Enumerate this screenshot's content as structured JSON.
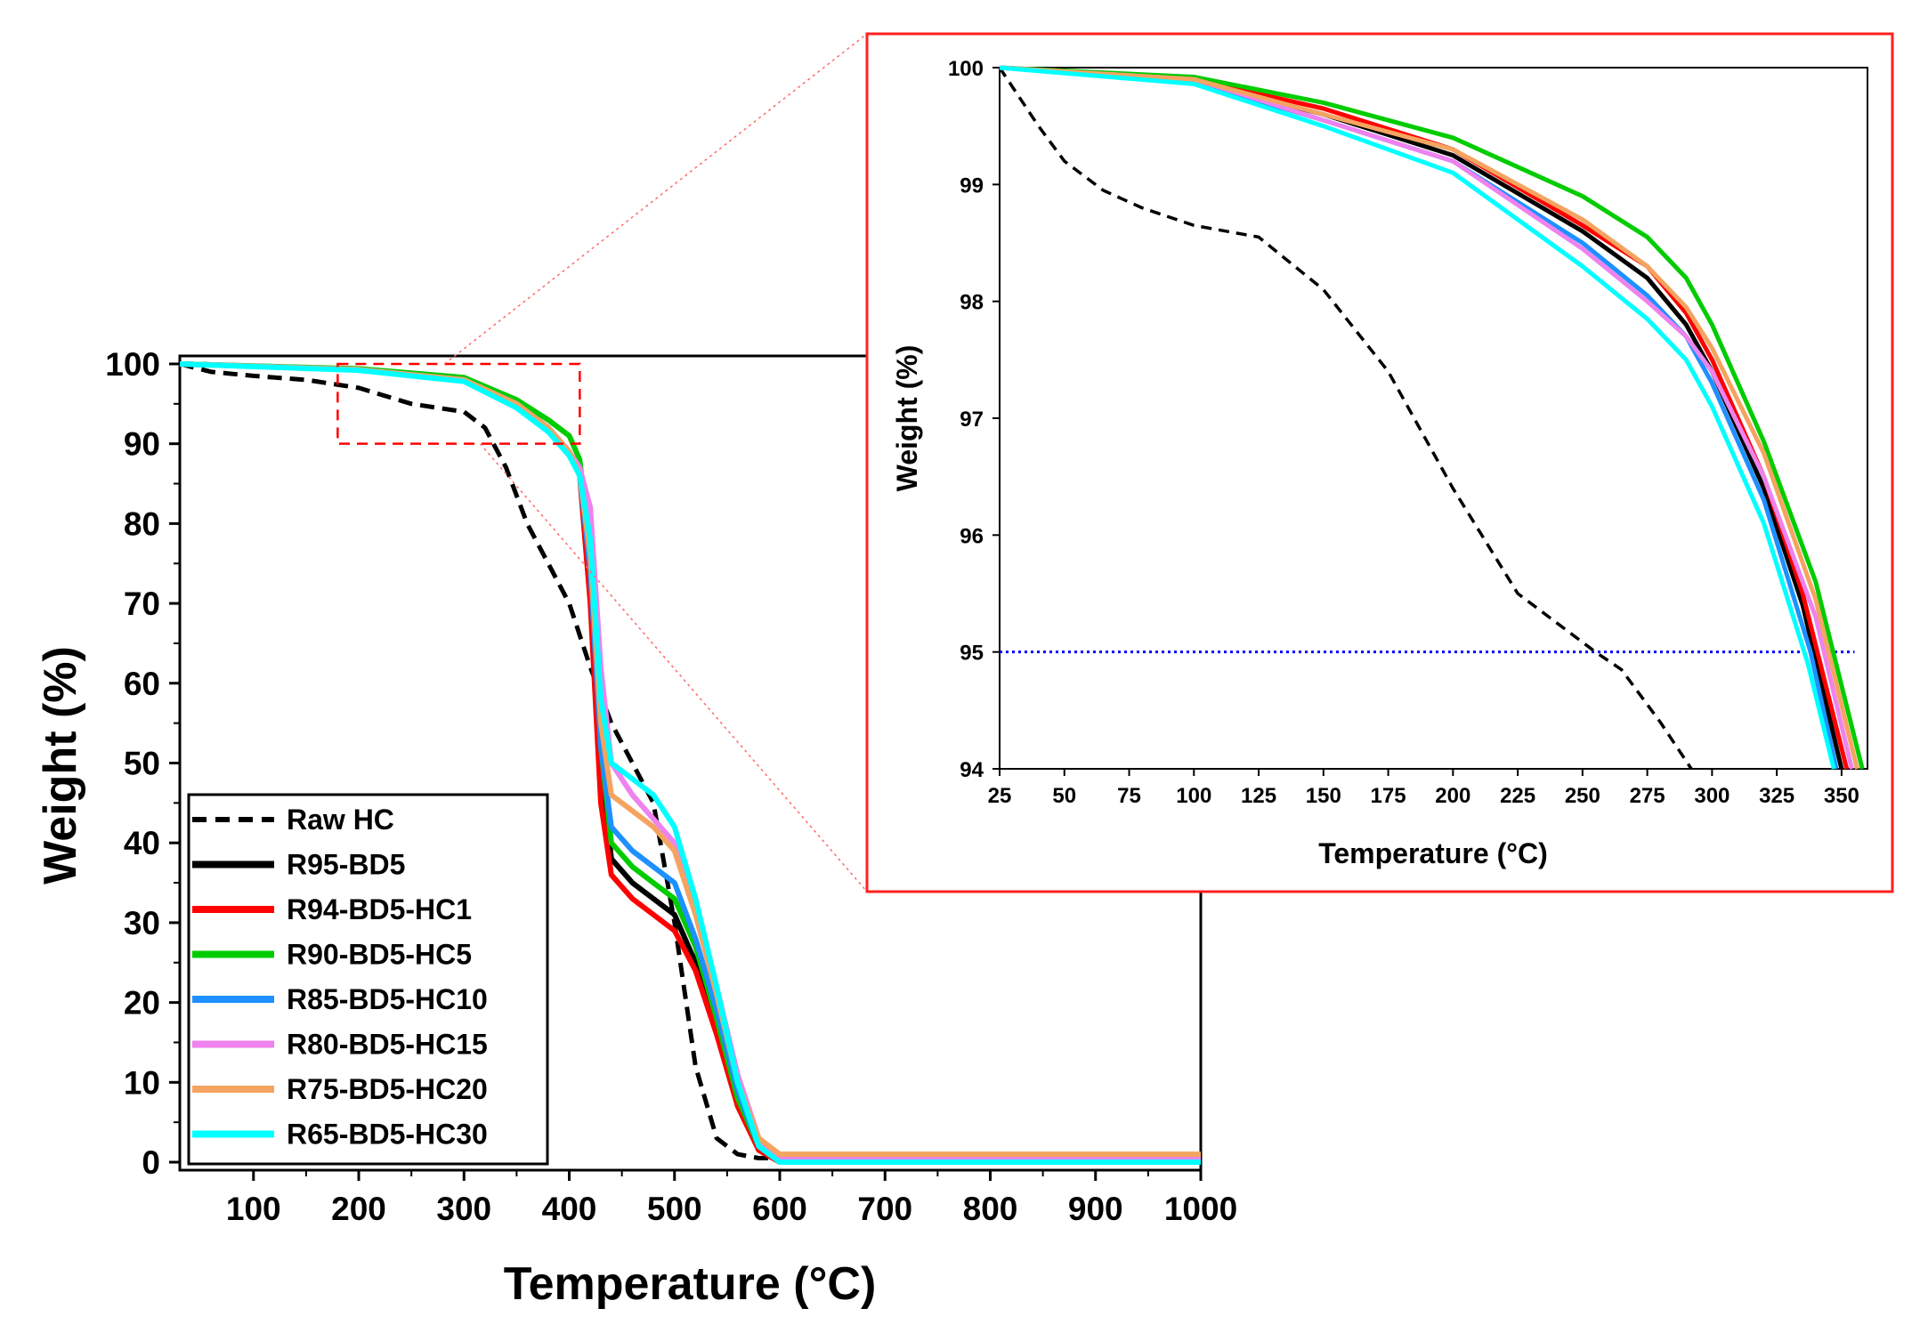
{
  "chart_data": [
    {
      "id": "main",
      "type": "line",
      "title": "",
      "xlabel": "Temperature (°C)",
      "ylabel": "Weight (%)",
      "xlim": [
        30,
        1000
      ],
      "ylim": [
        -1,
        101
      ],
      "xticks": [
        100,
        200,
        300,
        400,
        500,
        600,
        700,
        800,
        900,
        1000
      ],
      "yticks": [
        0,
        10,
        20,
        30,
        40,
        50,
        60,
        70,
        80,
        90,
        100
      ],
      "zoom_box": {
        "x": [
          180,
          410
        ],
        "y": [
          90,
          100
        ]
      },
      "legend_position": "bottom-left",
      "series": [
        {
          "name": "Raw HC",
          "color": "#000000",
          "dash": true,
          "x": [
            30,
            60,
            100,
            150,
            200,
            250,
            300,
            320,
            340,
            360,
            380,
            400,
            420,
            440,
            460,
            480,
            500,
            520,
            540,
            560,
            580,
            1000
          ],
          "y": [
            100,
            99,
            98.5,
            98,
            97,
            95,
            94,
            92,
            87,
            80,
            75,
            70,
            62,
            55,
            50,
            45,
            30,
            12,
            3,
            1,
            0.5,
            0.5
          ]
        },
        {
          "name": "R95-BD5",
          "color": "#000000",
          "dash": false,
          "x": [
            30,
            200,
            300,
            350,
            380,
            400,
            410,
            420,
            430,
            440,
            460,
            480,
            500,
            520,
            540,
            560,
            580,
            600,
            1000
          ],
          "y": [
            100,
            99.3,
            98,
            95,
            92,
            89,
            86,
            75,
            50,
            38,
            35,
            33,
            31,
            25,
            17,
            8,
            2,
            0,
            0
          ]
        },
        {
          "name": "R94-BD5-HC1",
          "color": "#ff0000",
          "dash": false,
          "x": [
            30,
            200,
            300,
            350,
            380,
            400,
            410,
            420,
            430,
            440,
            460,
            480,
            500,
            520,
            540,
            560,
            580,
            600,
            1000
          ],
          "y": [
            100,
            99.3,
            98,
            95,
            92,
            89,
            86,
            70,
            45,
            36,
            33,
            31,
            29,
            24,
            16,
            7,
            1.5,
            0,
            0
          ]
        },
        {
          "name": "R90-BD5-HC5",
          "color": "#00cc00",
          "dash": false,
          "x": [
            30,
            200,
            300,
            350,
            380,
            400,
            410,
            420,
            430,
            440,
            460,
            480,
            500,
            520,
            540,
            560,
            580,
            600,
            1000
          ],
          "y": [
            100,
            99.4,
            98.3,
            95.5,
            93,
            91,
            88,
            76,
            52,
            40,
            37,
            35,
            33,
            27,
            18,
            8,
            2,
            0,
            0
          ]
        },
        {
          "name": "R85-BD5-HC10",
          "color": "#1e90ff",
          "dash": false,
          "x": [
            30,
            200,
            300,
            350,
            380,
            400,
            410,
            420,
            430,
            440,
            460,
            480,
            500,
            520,
            540,
            560,
            580,
            600,
            1000
          ],
          "y": [
            100,
            99.3,
            98,
            95,
            92,
            89,
            86,
            74,
            52,
            42,
            39,
            37,
            35,
            28,
            19,
            9,
            2,
            0,
            0
          ]
        },
        {
          "name": "R80-BD5-HC15",
          "color": "#ee82ee",
          "dash": false,
          "x": [
            30,
            200,
            300,
            350,
            380,
            400,
            410,
            420,
            430,
            440,
            460,
            480,
            500,
            520,
            540,
            560,
            580,
            600,
            1000
          ],
          "y": [
            100,
            99.3,
            98,
            95,
            92,
            89,
            87,
            82,
            62,
            50,
            46,
            43,
            40,
            32,
            22,
            11,
            3,
            0.5,
            0.5
          ]
        },
        {
          "name": "R75-BD5-HC20",
          "color": "#f4a460",
          "dash": false,
          "x": [
            30,
            200,
            300,
            350,
            380,
            400,
            410,
            420,
            430,
            440,
            460,
            480,
            500,
            520,
            540,
            560,
            580,
            600,
            1000
          ],
          "y": [
            100,
            99.3,
            98,
            95,
            92,
            89,
            86,
            76,
            55,
            46,
            44,
            42,
            39,
            31,
            21,
            10,
            3,
            1,
            1
          ]
        },
        {
          "name": "R65-BD5-HC30",
          "color": "#00ffff",
          "dash": false,
          "x": [
            30,
            200,
            300,
            350,
            380,
            400,
            410,
            420,
            430,
            440,
            460,
            480,
            500,
            520,
            540,
            560,
            580,
            600,
            1000
          ],
          "y": [
            100,
            99.2,
            97.8,
            94.5,
            91.5,
            88.5,
            86,
            78,
            58,
            50,
            48,
            46,
            42,
            33,
            22,
            10,
            2,
            0,
            0
          ]
        }
      ]
    },
    {
      "id": "inset",
      "type": "line",
      "title": "",
      "xlabel": "Temperature (°C)",
      "ylabel": "Weight (%)",
      "xlim": [
        25,
        360
      ],
      "ylim": [
        94,
        100
      ],
      "xticks": [
        25,
        50,
        75,
        100,
        125,
        150,
        175,
        200,
        225,
        250,
        275,
        300,
        325,
        350
      ],
      "yticks": [
        94,
        95,
        96,
        97,
        98,
        99,
        100
      ],
      "reference_line": {
        "y": 95,
        "x": [
          25,
          355
        ],
        "color": "#0000ff",
        "style": "dotted"
      },
      "series": [
        {
          "name": "Raw HC",
          "color": "#000000",
          "dash": true,
          "x": [
            25,
            40,
            50,
            65,
            80,
            100,
            125,
            150,
            175,
            200,
            225,
            240,
            255,
            265,
            280,
            292
          ],
          "y": [
            100,
            99.5,
            99.2,
            98.95,
            98.8,
            98.65,
            98.55,
            98.1,
            97.4,
            96.4,
            95.5,
            95.25,
            95.0,
            94.85,
            94.4,
            94.0
          ]
        },
        {
          "name": "R95-BD5",
          "color": "#000000",
          "dash": false,
          "x": [
            25,
            100,
            150,
            200,
            250,
            275,
            290,
            300,
            320,
            335,
            350
          ],
          "y": [
            100,
            99.88,
            99.6,
            99.25,
            98.6,
            98.2,
            97.8,
            97.4,
            96.4,
            95.4,
            94.0
          ]
        },
        {
          "name": "R94-BD5-HC1",
          "color": "#ff0000",
          "dash": false,
          "x": [
            25,
            100,
            150,
            200,
            250,
            275,
            290,
            300,
            320,
            335,
            352
          ],
          "y": [
            100,
            99.9,
            99.65,
            99.3,
            98.65,
            98.3,
            97.9,
            97.5,
            96.5,
            95.5,
            94.0
          ]
        },
        {
          "name": "R90-BD5-HC5",
          "color": "#00cc00",
          "dash": false,
          "x": [
            25,
            100,
            150,
            200,
            250,
            275,
            290,
            300,
            320,
            340,
            358
          ],
          "y": [
            100,
            99.92,
            99.7,
            99.4,
            98.9,
            98.55,
            98.2,
            97.8,
            96.8,
            95.6,
            94.0
          ]
        },
        {
          "name": "R85-BD5-HC10",
          "color": "#1e90ff",
          "dash": false,
          "x": [
            25,
            100,
            150,
            200,
            250,
            275,
            290,
            300,
            320,
            338,
            348
          ],
          "y": [
            100,
            99.88,
            99.55,
            99.2,
            98.5,
            98.05,
            97.7,
            97.3,
            96.3,
            95.0,
            94.0
          ]
        },
        {
          "name": "R80-BD5-HC15",
          "color": "#ee82ee",
          "dash": false,
          "x": [
            25,
            100,
            150,
            200,
            250,
            275,
            290,
            300,
            320,
            340,
            354
          ],
          "y": [
            100,
            99.9,
            99.55,
            99.2,
            98.45,
            98.0,
            97.7,
            97.4,
            96.5,
            95.3,
            94.0
          ]
        },
        {
          "name": "R75-BD5-HC20",
          "color": "#f4a460",
          "dash": false,
          "x": [
            25,
            100,
            150,
            200,
            250,
            275,
            290,
            300,
            320,
            340,
            356
          ],
          "y": [
            100,
            99.9,
            99.6,
            99.3,
            98.7,
            98.3,
            97.95,
            97.6,
            96.7,
            95.45,
            94.0
          ]
        },
        {
          "name": "R65-BD5-HC30",
          "color": "#00ffff",
          "dash": false,
          "x": [
            25,
            100,
            150,
            200,
            250,
            275,
            290,
            300,
            320,
            337,
            347
          ],
          "y": [
            100,
            99.86,
            99.5,
            99.1,
            98.3,
            97.85,
            97.5,
            97.1,
            96.1,
            94.9,
            94.0
          ]
        }
      ]
    }
  ]
}
